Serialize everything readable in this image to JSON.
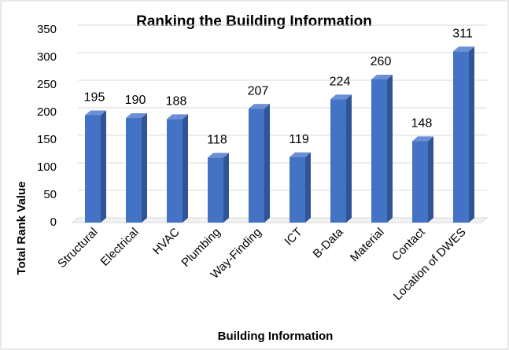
{
  "chart_data": {
    "type": "bar3d",
    "title": "Ranking the Building Information",
    "x_label": "Building Information",
    "y_label": "Total Rank Value",
    "categories": [
      "Structural",
      "Electrical",
      "HVAC",
      "Plumbing",
      "Way-Finding",
      "ICT",
      "B-Data",
      "Material",
      "Contact",
      "Location of DWES"
    ],
    "values": [
      195,
      190,
      188,
      118,
      207,
      119,
      224,
      260,
      148,
      311
    ],
    "color": "#4472c4",
    "ylim": [
      0,
      350
    ],
    "yticks": [
      0,
      50,
      100,
      150,
      200,
      250,
      300,
      350
    ],
    "grid": true
  }
}
